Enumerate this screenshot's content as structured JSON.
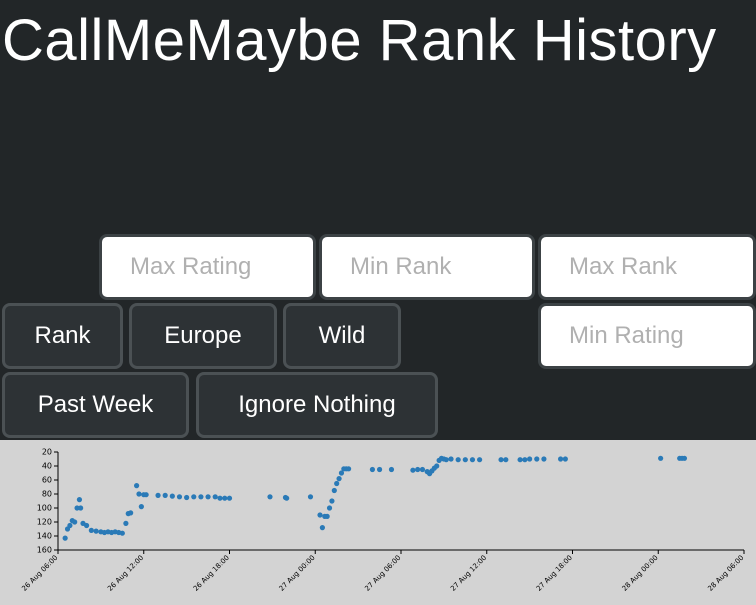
{
  "page": {
    "title": "CallMeMaybe Rank History"
  },
  "filters": {
    "max_rating_placeholder": "Max Rating",
    "min_rank_placeholder": "Min Rank",
    "max_rank_placeholder": "Max Rank",
    "min_rating_placeholder": "Min Rating"
  },
  "buttons": {
    "rank": "Rank",
    "region": "Europe",
    "mode": "Wild",
    "period": "Past Week",
    "ignore": "Ignore Nothing"
  },
  "chart_data": {
    "type": "scatter",
    "title": "",
    "xlabel": "",
    "ylabel": "",
    "color": "#2a7ab7",
    "background": "#d3d3d3",
    "grid": false,
    "x_is_time": true,
    "xlim": [
      "2016-08-26T06:00",
      "2016-08-28T06:00"
    ],
    "ylim": [
      160,
      20
    ],
    "y_inverted": true,
    "y_ticks": [
      20,
      40,
      60,
      80,
      100,
      120,
      140,
      160
    ],
    "x_ticks": [
      "26 Aug 06:00",
      "26 Aug 12:00",
      "26 Aug 18:00",
      "27 Aug 00:00",
      "27 Aug 06:00",
      "27 Aug 12:00",
      "27 Aug 18:00",
      "28 Aug 00:00",
      "28 Aug 06:00"
    ],
    "points": [
      [
        "2016-08-26T06:30",
        143
      ],
      [
        "2016-08-26T06:40",
        130
      ],
      [
        "2016-08-26T06:50",
        125
      ],
      [
        "2016-08-26T07:00",
        118
      ],
      [
        "2016-08-26T07:10",
        120
      ],
      [
        "2016-08-26T07:20",
        100
      ],
      [
        "2016-08-26T07:30",
        88
      ],
      [
        "2016-08-26T07:35",
        100
      ],
      [
        "2016-08-26T07:45",
        122
      ],
      [
        "2016-08-26T08:00",
        125
      ],
      [
        "2016-08-26T08:20",
        132
      ],
      [
        "2016-08-26T08:40",
        133
      ],
      [
        "2016-08-26T09:00",
        134
      ],
      [
        "2016-08-26T09:15",
        135
      ],
      [
        "2016-08-26T09:30",
        134
      ],
      [
        "2016-08-26T09:45",
        135
      ],
      [
        "2016-08-26T10:00",
        134
      ],
      [
        "2016-08-26T10:15",
        135
      ],
      [
        "2016-08-26T10:30",
        136
      ],
      [
        "2016-08-26T10:45",
        122
      ],
      [
        "2016-08-26T10:55",
        108
      ],
      [
        "2016-08-26T11:05",
        107
      ],
      [
        "2016-08-26T11:30",
        68
      ],
      [
        "2016-08-26T11:40",
        80
      ],
      [
        "2016-08-26T11:50",
        98
      ],
      [
        "2016-08-26T12:00",
        81
      ],
      [
        "2016-08-26T12:10",
        81
      ],
      [
        "2016-08-26T13:00",
        82
      ],
      [
        "2016-08-26T13:30",
        82
      ],
      [
        "2016-08-26T14:00",
        83
      ],
      [
        "2016-08-26T14:30",
        84
      ],
      [
        "2016-08-26T15:00",
        85
      ],
      [
        "2016-08-26T15:30",
        84
      ],
      [
        "2016-08-26T16:00",
        84
      ],
      [
        "2016-08-26T16:30",
        84
      ],
      [
        "2016-08-26T17:00",
        84
      ],
      [
        "2016-08-26T17:20",
        86
      ],
      [
        "2016-08-26T17:40",
        86
      ],
      [
        "2016-08-26T18:00",
        86
      ],
      [
        "2016-08-26T20:50",
        84
      ],
      [
        "2016-08-26T21:55",
        85
      ],
      [
        "2016-08-26T22:00",
        86
      ],
      [
        "2016-08-26T23:40",
        84
      ],
      [
        "2016-08-27T00:20",
        110
      ],
      [
        "2016-08-27T00:30",
        128
      ],
      [
        "2016-08-27T00:40",
        112
      ],
      [
        "2016-08-27T00:50",
        112
      ],
      [
        "2016-08-27T01:00",
        100
      ],
      [
        "2016-08-27T01:10",
        90
      ],
      [
        "2016-08-27T01:20",
        75
      ],
      [
        "2016-08-27T01:30",
        65
      ],
      [
        "2016-08-27T01:40",
        58
      ],
      [
        "2016-08-27T01:50",
        50
      ],
      [
        "2016-08-27T02:00",
        44
      ],
      [
        "2016-08-27T02:10",
        44
      ],
      [
        "2016-08-27T02:20",
        44
      ],
      [
        "2016-08-27T04:00",
        45
      ],
      [
        "2016-08-27T04:30",
        45
      ],
      [
        "2016-08-27T05:20",
        45
      ],
      [
        "2016-08-27T06:50",
        46
      ],
      [
        "2016-08-27T07:10",
        45
      ],
      [
        "2016-08-27T07:30",
        45
      ],
      [
        "2016-08-27T07:50",
        48
      ],
      [
        "2016-08-27T08:00",
        51
      ],
      [
        "2016-08-27T08:10",
        47
      ],
      [
        "2016-08-27T08:20",
        43
      ],
      [
        "2016-08-27T08:30",
        40
      ],
      [
        "2016-08-27T08:40",
        32
      ],
      [
        "2016-08-27T08:50",
        29
      ],
      [
        "2016-08-27T09:00",
        30
      ],
      [
        "2016-08-27T09:10",
        31
      ],
      [
        "2016-08-27T09:30",
        30
      ],
      [
        "2016-08-27T10:00",
        31
      ],
      [
        "2016-08-27T10:30",
        31
      ],
      [
        "2016-08-27T11:00",
        31
      ],
      [
        "2016-08-27T11:30",
        31
      ],
      [
        "2016-08-27T13:00",
        31
      ],
      [
        "2016-08-27T13:20",
        31
      ],
      [
        "2016-08-27T14:20",
        31
      ],
      [
        "2016-08-27T14:40",
        31
      ],
      [
        "2016-08-27T15:00",
        30
      ],
      [
        "2016-08-27T15:30",
        30
      ],
      [
        "2016-08-27T16:00",
        30
      ],
      [
        "2016-08-27T17:10",
        30
      ],
      [
        "2016-08-27T17:30",
        30
      ],
      [
        "2016-08-28T00:10",
        29
      ],
      [
        "2016-08-28T01:30",
        29
      ],
      [
        "2016-08-28T01:40",
        29
      ],
      [
        "2016-08-28T01:50",
        29
      ]
    ]
  }
}
